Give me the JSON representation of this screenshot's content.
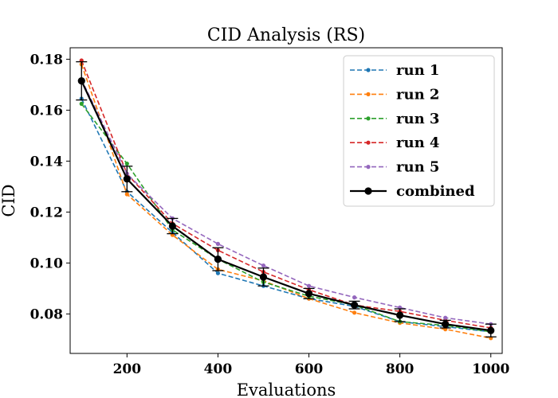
{
  "chart_data": {
    "type": "line",
    "title": "CID Analysis (RS)",
    "xlabel": "Evaluations",
    "ylabel": "CID",
    "xlim": [
      75,
      1025
    ],
    "ylim": [
      0.0645,
      0.1845
    ],
    "xticks": [
      200,
      400,
      600,
      800,
      1000
    ],
    "yticks": [
      0.08,
      0.1,
      0.12,
      0.14,
      0.16,
      0.18
    ],
    "ytick_labels": [
      "0.08",
      "0.10",
      "0.12",
      "0.14",
      "0.16",
      "0.18"
    ],
    "grid": false,
    "legend_position": "top-right",
    "x": [
      100,
      200,
      300,
      400,
      500,
      600,
      700,
      800,
      900,
      1000
    ],
    "series": [
      {
        "name": "run 1",
        "color": "#1f77b4",
        "style": "dashed",
        "values": [
          0.1645,
          0.128,
          0.112,
          0.096,
          0.091,
          0.086,
          0.083,
          0.077,
          0.075,
          0.073
        ]
      },
      {
        "name": "run 2",
        "color": "#ff7f0e",
        "style": "dashed",
        "values": [
          0.178,
          0.127,
          0.111,
          0.0975,
          0.093,
          0.086,
          0.0805,
          0.0765,
          0.074,
          0.0705
        ]
      },
      {
        "name": "run 3",
        "color": "#2ca02c",
        "style": "dashed",
        "values": [
          0.1625,
          0.139,
          0.113,
          0.1015,
          0.0925,
          0.087,
          0.0835,
          0.077,
          0.0755,
          0.073
        ]
      },
      {
        "name": "run 4",
        "color": "#d62728",
        "style": "dashed",
        "values": [
          0.1795,
          0.135,
          0.1155,
          0.105,
          0.0965,
          0.0895,
          0.0835,
          0.081,
          0.0775,
          0.0745
        ]
      },
      {
        "name": "run 5",
        "color": "#9467bd",
        "style": "dashed",
        "values": [
          0.172,
          0.135,
          0.1175,
          0.1075,
          0.099,
          0.091,
          0.0865,
          0.0825,
          0.0785,
          0.076
        ]
      },
      {
        "name": "combined",
        "color": "#000000",
        "style": "solid",
        "values": [
          0.1715,
          0.133,
          0.1145,
          0.1015,
          0.0945,
          0.088,
          0.0835,
          0.0795,
          0.076,
          0.0735
        ],
        "error": [
          0.0075,
          0.005,
          0.003,
          0.0045,
          0.0035,
          0.002,
          0.0015,
          0.0025,
          0.0015,
          0.0025
        ]
      }
    ]
  }
}
